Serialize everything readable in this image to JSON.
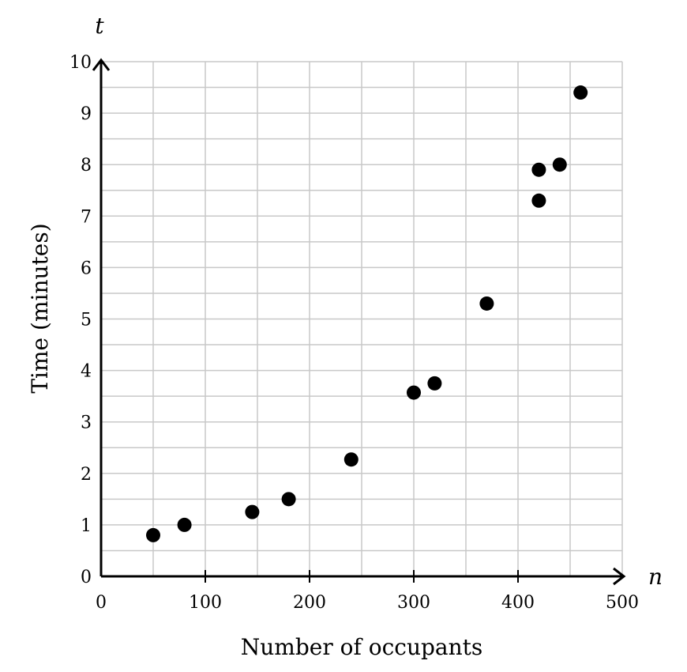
{
  "chart_data": {
    "type": "scatter",
    "xlabel": "Number of occupants",
    "ylabel": "Time (minutes)",
    "x_var": "n",
    "y_var": "t",
    "xlim": [
      0,
      500
    ],
    "ylim": [
      0,
      10
    ],
    "x_major_step": 100,
    "x_minor_step": 50,
    "y_major_step": 1,
    "y_minor_step": 0.5,
    "x_ticks": [
      "0",
      "100",
      "200",
      "300",
      "400",
      "500"
    ],
    "y_ticks": [
      "0",
      "1",
      "2",
      "3",
      "4",
      "5",
      "6",
      "7",
      "8",
      "9",
      "10"
    ],
    "grid": true,
    "series": [
      {
        "points": [
          {
            "x": 50,
            "y": 0.8
          },
          {
            "x": 80,
            "y": 1.0
          },
          {
            "x": 145,
            "y": 1.25
          },
          {
            "x": 180,
            "y": 1.5
          },
          {
            "x": 240,
            "y": 2.27
          },
          {
            "x": 300,
            "y": 3.57
          },
          {
            "x": 320,
            "y": 3.75
          },
          {
            "x": 370,
            "y": 5.3
          },
          {
            "x": 420,
            "y": 7.9
          },
          {
            "x": 420,
            "y": 7.3
          },
          {
            "x": 440,
            "y": 8.0
          },
          {
            "x": 460,
            "y": 9.4
          }
        ],
        "color": "#000000"
      }
    ]
  }
}
